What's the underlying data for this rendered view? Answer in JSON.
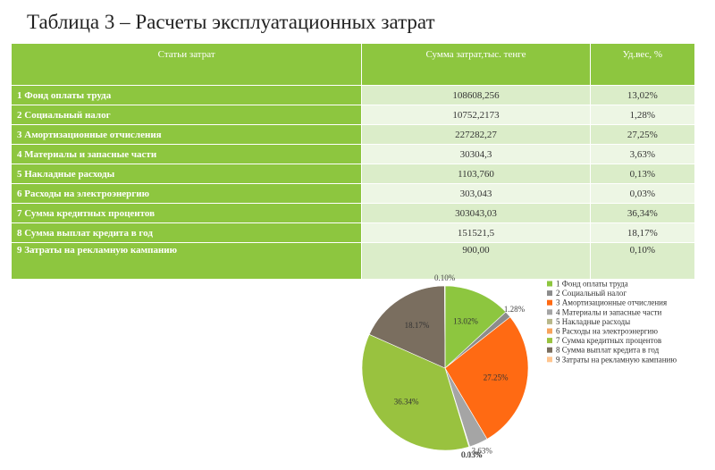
{
  "title": "Таблица 3 – Расчеты эксплуатационных затрат",
  "table": {
    "header": [
      "Статьи затрат",
      "Сумма затрат,тыс. тенге",
      "Уд.вес, %"
    ],
    "rows": [
      [
        "1 Фонд оплаты  труда",
        "108608,256",
        "13,02%"
      ],
      [
        "2 Социальный налог",
        "10752,2173",
        "1,28%"
      ],
      [
        "3 Амортизационные отчисления",
        "227282,27",
        "27,25%"
      ],
      [
        "4 Материалы и запасные части",
        "30304,3",
        "3,63%"
      ],
      [
        "5 Накладные расходы",
        "1103,760",
        "0,13%"
      ],
      [
        "6 Расходы на электроэнергию",
        "303,043",
        "0,03%"
      ],
      [
        "7 Сумма кредитных процентов",
        "303043,03",
        "36,34%"
      ],
      [
        "8 Сумма выплат кредита в год",
        "151521,5",
        "18,17%"
      ],
      [
        "9 Затраты на рекламную кампанию",
        "900,00",
        "0,10%"
      ]
    ]
  },
  "chart_data": {
    "type": "pie",
    "categories": [
      "1 Фонд оплаты  труда",
      "2 Социальный налог",
      "3 Амортизационные отчисления",
      "4 Материалы и запасные части",
      "5 Накладные расходы",
      "6 Расходы на электроэнергию",
      "7 Сумма кредитных процентов",
      "8 Сумма выплат кредита в год",
      "9 Затраты на рекламную кампанию"
    ],
    "values": [
      13.02,
      1.28,
      27.25,
      3.63,
      0.13,
      0.03,
      36.34,
      18.17,
      0.1
    ],
    "value_labels": [
      "13.02%",
      "1.28%",
      "27.25%",
      "3.63%",
      "0.13%",
      "0.03%",
      "36.34%",
      "18.17%",
      "0.10%"
    ],
    "colors": [
      "#8dc63f",
      "#8c8c8c",
      "#ff6a13",
      "#a5a5a5",
      "#b7b78a",
      "#f7a35c",
      "#99c23f",
      "#7a6e5f",
      "#ffc58f"
    ],
    "legend": "right"
  }
}
